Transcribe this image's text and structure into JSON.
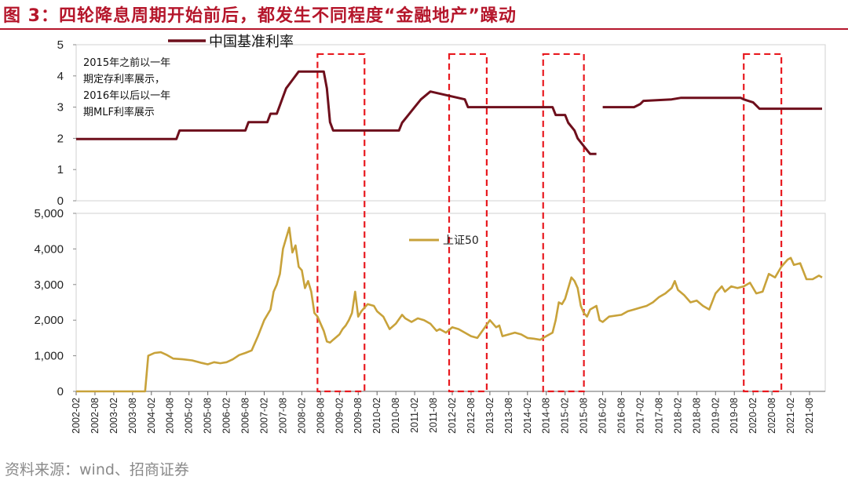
{
  "header": {
    "title": "图 3：四轮降息周期开始前后，都发生不同程度“金融地产”躁动"
  },
  "footer": {
    "source": "资料来源：wind、招商证券"
  },
  "chart_data": [
    {
      "type": "line",
      "title": "",
      "legend": {
        "label": "中国基准利率",
        "placement": "top-left"
      },
      "note": [
        "2015年之前以一年",
        "期定存利率展示，",
        "2016年以后以一年",
        "期MLF利率展示"
      ],
      "ylim": [
        0,
        5
      ],
      "yticks": [
        "0",
        "1",
        "2",
        "3",
        "4",
        "5"
      ],
      "grid": false,
      "color": "#6e0f1c",
      "series": [
        {
          "name": "中国基准利率",
          "points": [
            [
              "2002-02",
              1.98
            ],
            [
              "2004-10",
              1.98
            ],
            [
              "2004-11",
              2.25
            ],
            [
              "2006-08",
              2.25
            ],
            [
              "2006-09",
              2.52
            ],
            [
              "2007-03",
              2.52
            ],
            [
              "2007-04",
              2.79
            ],
            [
              "2007-06",
              2.79
            ],
            [
              "2007-07",
              3.06
            ],
            [
              "2007-08",
              3.33
            ],
            [
              "2007-09",
              3.6
            ],
            [
              "2007-11",
              3.87
            ],
            [
              "2008-01",
              4.14
            ],
            [
              "2008-09",
              4.14
            ],
            [
              "2008-10",
              3.6
            ],
            [
              "2008-11",
              2.52
            ],
            [
              "2008-12",
              2.25
            ],
            [
              "2010-09",
              2.25
            ],
            [
              "2010-10",
              2.5
            ],
            [
              "2010-12",
              2.75
            ],
            [
              "2011-02",
              3.0
            ],
            [
              "2011-04",
              3.25
            ],
            [
              "2011-07",
              3.5
            ],
            [
              "2012-06",
              3.25
            ],
            [
              "2012-07",
              3.0
            ],
            [
              "2014-10",
              3.0
            ],
            [
              "2014-11",
              2.75
            ],
            [
              "2015-02",
              2.75
            ],
            [
              "2015-03",
              2.5
            ],
            [
              "2015-05",
              2.25
            ],
            [
              "2015-06",
              2.0
            ],
            [
              "2015-08",
              1.75
            ],
            [
              "2015-10",
              1.5
            ],
            [
              "2015-12",
              1.5
            ],
            null,
            [
              "2016-02",
              3.0
            ],
            [
              "2016-12",
              3.0
            ],
            [
              "2017-02",
              3.1
            ],
            [
              "2017-03",
              3.2
            ],
            [
              "2017-12",
              3.25
            ],
            [
              "2018-03",
              3.3
            ],
            [
              "2019-10",
              3.3
            ],
            [
              "2019-11",
              3.25
            ],
            [
              "2020-02",
              3.15
            ],
            [
              "2020-04",
              2.95
            ],
            [
              "2021-12",
              2.95
            ]
          ]
        }
      ]
    },
    {
      "type": "line",
      "title": "",
      "legend": {
        "label": "上证50",
        "placement": "center"
      },
      "ylim": [
        0,
        5000
      ],
      "yticks": [
        "0",
        "1,000",
        "2,000",
        "3,000",
        "4,000",
        "5,000"
      ],
      "grid": false,
      "color": "#c8a23a",
      "x_tick_labels": [
        "2002-02",
        "2002-08",
        "2003-02",
        "2003-08",
        "2004-02",
        "2004-08",
        "2005-02",
        "2005-08",
        "2006-02",
        "2006-08",
        "2007-02",
        "2007-08",
        "2008-02",
        "2008-08",
        "2009-02",
        "2009-08",
        "2010-02",
        "2010-08",
        "2011-02",
        "2011-08",
        "2012-02",
        "2012-08",
        "2013-02",
        "2013-08",
        "2014-02",
        "2014-08",
        "2015-02",
        "2015-08",
        "2016-02",
        "2016-08",
        "2017-02",
        "2017-08",
        "2018-02",
        "2018-08",
        "2019-02",
        "2019-08",
        "2020-02",
        "2020-08",
        "2021-02",
        "2021-08"
      ],
      "series": [
        {
          "name": "上证50",
          "points": [
            [
              "2002-02",
              0
            ],
            [
              "2003-12",
              0
            ],
            [
              "2004-01",
              1000
            ],
            [
              "2004-03",
              1080
            ],
            [
              "2004-05",
              1100
            ],
            [
              "2004-07",
              1020
            ],
            [
              "2004-09",
              920
            ],
            [
              "2004-12",
              900
            ],
            [
              "2005-03",
              870
            ],
            [
              "2005-06",
              800
            ],
            [
              "2005-08",
              760
            ],
            [
              "2005-10",
              820
            ],
            [
              "2005-12",
              790
            ],
            [
              "2006-02",
              820
            ],
            [
              "2006-04",
              900
            ],
            [
              "2006-06",
              1020
            ],
            [
              "2006-08",
              1080
            ],
            [
              "2006-10",
              1150
            ],
            [
              "2006-12",
              1550
            ],
            [
              "2007-02",
              2000
            ],
            [
              "2007-04",
              2300
            ],
            [
              "2007-05",
              2800
            ],
            [
              "2007-06",
              3000
            ],
            [
              "2007-07",
              3300
            ],
            [
              "2007-08",
              4000
            ],
            [
              "2007-09",
              4300
            ],
            [
              "2007-10",
              4600
            ],
            [
              "2007-11",
              3900
            ],
            [
              "2007-12",
              4100
            ],
            [
              "2008-01",
              3500
            ],
            [
              "2008-02",
              3400
            ],
            [
              "2008-03",
              2900
            ],
            [
              "2008-04",
              3100
            ],
            [
              "2008-05",
              2800
            ],
            [
              "2008-06",
              2200
            ],
            [
              "2008-07",
              2100
            ],
            [
              "2008-08",
              1900
            ],
            [
              "2008-09",
              1700
            ],
            [
              "2008-10",
              1400
            ],
            [
              "2008-11",
              1370
            ],
            [
              "2008-12",
              1450
            ],
            [
              "2009-02",
              1600
            ],
            [
              "2009-03",
              1750
            ],
            [
              "2009-04",
              1850
            ],
            [
              "2009-05",
              2000
            ],
            [
              "2009-06",
              2200
            ],
            [
              "2009-07",
              2800
            ],
            [
              "2009-08",
              2100
            ],
            [
              "2009-09",
              2250
            ],
            [
              "2009-11",
              2450
            ],
            [
              "2010-01",
              2400
            ],
            [
              "2010-02",
              2250
            ],
            [
              "2010-04",
              2100
            ],
            [
              "2010-06",
              1750
            ],
            [
              "2010-08",
              1900
            ],
            [
              "2010-10",
              2150
            ],
            [
              "2010-11",
              2050
            ],
            [
              "2011-01",
              1950
            ],
            [
              "2011-03",
              2050
            ],
            [
              "2011-05",
              2000
            ],
            [
              "2011-07",
              1900
            ],
            [
              "2011-09",
              1700
            ],
            [
              "2011-10",
              1750
            ],
            [
              "2011-12",
              1650
            ],
            [
              "2012-02",
              1800
            ],
            [
              "2012-04",
              1750
            ],
            [
              "2012-06",
              1650
            ],
            [
              "2012-08",
              1550
            ],
            [
              "2012-10",
              1500
            ],
            [
              "2012-12",
              1750
            ],
            [
              "2013-02",
              2000
            ],
            [
              "2013-04",
              1800
            ],
            [
              "2013-05",
              1850
            ],
            [
              "2013-06",
              1550
            ],
            [
              "2013-08",
              1600
            ],
            [
              "2013-10",
              1650
            ],
            [
              "2013-12",
              1600
            ],
            [
              "2014-02",
              1500
            ],
            [
              "2014-04",
              1480
            ],
            [
              "2014-06",
              1450
            ],
            [
              "2014-08",
              1550
            ],
            [
              "2014-10",
              1650
            ],
            [
              "2014-11",
              2000
            ],
            [
              "2014-12",
              2500
            ],
            [
              "2015-01",
              2450
            ],
            [
              "2015-02",
              2600
            ],
            [
              "2015-04",
              3200
            ],
            [
              "2015-05",
              3100
            ],
            [
              "2015-06",
              2900
            ],
            [
              "2015-07",
              2400
            ],
            [
              "2015-08",
              2200
            ],
            [
              "2015-09",
              2100
            ],
            [
              "2015-10",
              2300
            ],
            [
              "2015-12",
              2400
            ],
            [
              "2016-01",
              2000
            ],
            [
              "2016-02",
              1950
            ],
            [
              "2016-04",
              2100
            ],
            [
              "2016-08",
              2150
            ],
            [
              "2016-10",
              2250
            ],
            [
              "2016-12",
              2300
            ],
            [
              "2017-02",
              2350
            ],
            [
              "2017-04",
              2400
            ],
            [
              "2017-06",
              2500
            ],
            [
              "2017-08",
              2650
            ],
            [
              "2017-10",
              2750
            ],
            [
              "2017-12",
              2900
            ],
            [
              "2018-01",
              3100
            ],
            [
              "2018-02",
              2850
            ],
            [
              "2018-04",
              2700
            ],
            [
              "2018-06",
              2500
            ],
            [
              "2018-08",
              2550
            ],
            [
              "2018-10",
              2400
            ],
            [
              "2018-12",
              2300
            ],
            [
              "2019-02",
              2750
            ],
            [
              "2019-04",
              2950
            ],
            [
              "2019-05",
              2800
            ],
            [
              "2019-07",
              2950
            ],
            [
              "2019-09",
              2900
            ],
            [
              "2019-11",
              2950
            ],
            [
              "2020-01",
              3050
            ],
            [
              "2020-03",
              2750
            ],
            [
              "2020-05",
              2800
            ],
            [
              "2020-07",
              3300
            ],
            [
              "2020-09",
              3200
            ],
            [
              "2020-11",
              3500
            ],
            [
              "2021-01",
              3700
            ],
            [
              "2021-02",
              3750
            ],
            [
              "2021-03",
              3550
            ],
            [
              "2021-05",
              3600
            ],
            [
              "2021-07",
              3150
            ],
            [
              "2021-09",
              3150
            ],
            [
              "2021-11",
              3250
            ],
            [
              "2021-12",
              3200
            ]
          ]
        }
      ],
      "highlight_periods": [
        [
          "2008-07",
          "2009-10"
        ],
        [
          "2012-01",
          "2013-01"
        ],
        [
          "2014-07",
          "2015-08"
        ],
        [
          "2019-11",
          "2020-11"
        ]
      ]
    }
  ]
}
